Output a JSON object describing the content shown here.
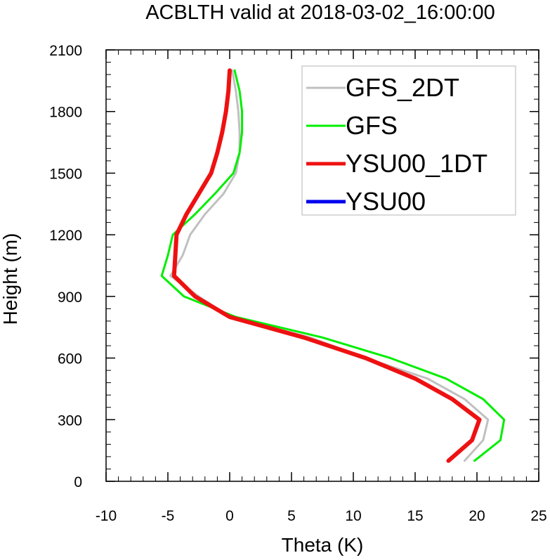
{
  "chart_data": {
    "type": "line",
    "title": "ACBLTH valid at 2018-03-02_16:00:00",
    "xlabel": "Theta (K)",
    "ylabel": "Height (m)",
    "xlim": [
      -10,
      25
    ],
    "ylim": [
      0,
      2100
    ],
    "xticks": [
      "-10",
      "-5",
      "0",
      "5",
      "10",
      "15",
      "20",
      "25"
    ],
    "yticks": [
      "0",
      "300",
      "600",
      "900",
      "1200",
      "1500",
      "1800",
      "2100"
    ],
    "grid": false,
    "legend_position": "top-right",
    "series": [
      {
        "name": "GFS_2DT",
        "color": "#c0c0c0",
        "points": [
          [
            19.0,
            100
          ],
          [
            20.5,
            200
          ],
          [
            20.9,
            300
          ],
          [
            19.0,
            400
          ],
          [
            16.0,
            500
          ],
          [
            11.0,
            600
          ],
          [
            6.5,
            700
          ],
          [
            0.0,
            800
          ],
          [
            -2.5,
            900
          ],
          [
            -4.8,
            1000
          ],
          [
            -3.8,
            1100
          ],
          [
            -3.2,
            1200
          ],
          [
            -2.0,
            1300
          ],
          [
            -0.5,
            1400
          ],
          [
            0.5,
            1500
          ],
          [
            0.8,
            1600
          ],
          [
            0.8,
            1700
          ],
          [
            0.7,
            1800
          ],
          [
            0.5,
            1900
          ],
          [
            0.2,
            2000
          ]
        ]
      },
      {
        "name": "GFS",
        "color": "#00ee00",
        "points": [
          [
            19.8,
            100
          ],
          [
            21.9,
            200
          ],
          [
            22.2,
            300
          ],
          [
            20.5,
            400
          ],
          [
            17.5,
            500
          ],
          [
            13.0,
            600
          ],
          [
            7.5,
            700
          ],
          [
            0.5,
            800
          ],
          [
            -3.7,
            900
          ],
          [
            -5.5,
            1000
          ],
          [
            -5.0,
            1100
          ],
          [
            -4.6,
            1200
          ],
          [
            -2.8,
            1300
          ],
          [
            -1.2,
            1400
          ],
          [
            0.3,
            1500
          ],
          [
            0.8,
            1600
          ],
          [
            1.0,
            1700
          ],
          [
            1.0,
            1800
          ],
          [
            0.8,
            1900
          ],
          [
            0.4,
            2000
          ]
        ]
      },
      {
        "name": "YSU00_1DT",
        "color": "#ee1111",
        "points": [
          [
            17.7,
            100
          ],
          [
            19.6,
            200
          ],
          [
            20.2,
            300
          ],
          [
            18.0,
            400
          ],
          [
            15.0,
            500
          ],
          [
            11.0,
            600
          ],
          [
            6.0,
            700
          ],
          [
            0.0,
            800
          ],
          [
            -2.8,
            900
          ],
          [
            -4.5,
            1000
          ],
          [
            -4.4,
            1100
          ],
          [
            -4.3,
            1200
          ],
          [
            -3.5,
            1300
          ],
          [
            -2.5,
            1400
          ],
          [
            -1.5,
            1500
          ],
          [
            -1.0,
            1600
          ],
          [
            -0.6,
            1700
          ],
          [
            -0.3,
            1800
          ],
          [
            -0.1,
            1900
          ],
          [
            0.0,
            2000
          ]
        ]
      },
      {
        "name": "YSU00",
        "color": "#0000ee",
        "points": [
          [
            17.7,
            100
          ],
          [
            19.6,
            200
          ],
          [
            20.2,
            300
          ],
          [
            18.0,
            400
          ],
          [
            15.0,
            500
          ],
          [
            11.0,
            600
          ],
          [
            6.0,
            700
          ],
          [
            0.0,
            800
          ],
          [
            -2.8,
            900
          ],
          [
            -4.5,
            1000
          ],
          [
            -4.4,
            1100
          ],
          [
            -4.3,
            1200
          ],
          [
            -3.5,
            1300
          ],
          [
            -2.5,
            1400
          ],
          [
            -1.5,
            1500
          ],
          [
            -1.0,
            1600
          ],
          [
            -0.6,
            1700
          ],
          [
            -0.3,
            1800
          ],
          [
            -0.1,
            1900
          ],
          [
            0.0,
            2000
          ]
        ]
      }
    ],
    "draw_order": [
      "GFS_2DT",
      "GFS",
      "YSU00",
      "YSU00_1DT"
    ]
  }
}
